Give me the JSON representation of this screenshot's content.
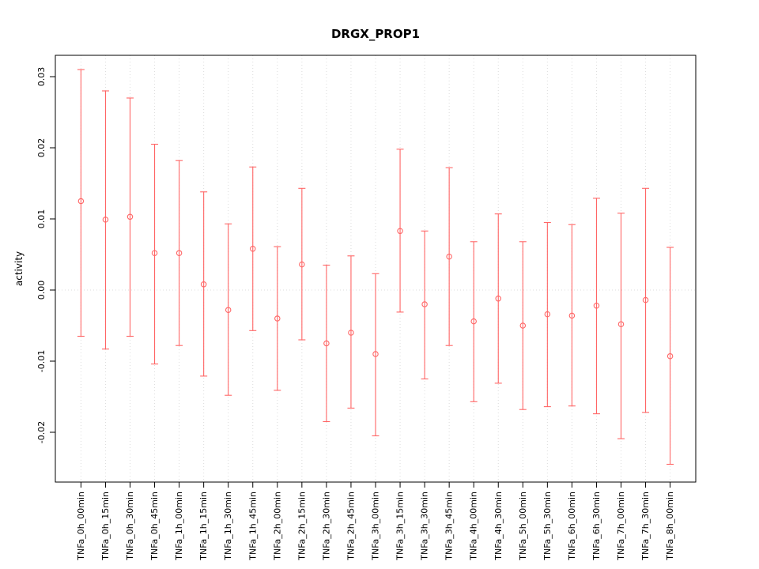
{
  "chart_data": {
    "type": "scatter",
    "error_bars": true,
    "title": "DRGX_PROP1",
    "xlabel": "",
    "ylabel": "activity",
    "ylim": [
      -0.027,
      0.033
    ],
    "yticks": [
      0.03,
      0.02,
      0.01,
      0.0,
      -0.01,
      -0.02
    ],
    "color": "#ff6666",
    "grid_color": "#dcdcdc",
    "categories": [
      "TNFa_0h_00min",
      "TNFa_0h_15min",
      "TNFa_0h_30min",
      "TNFa_0h_45min",
      "TNFa_1h_00min",
      "TNFa_1h_15min",
      "TNFa_1h_30min",
      "TNFa_1h_45min",
      "TNFa_2h_00min",
      "TNFa_2h_15min",
      "TNFa_2h_30min",
      "TNFa_2h_45min",
      "TNFa_3h_00min",
      "TNFa_3h_15min",
      "TNFa_3h_30min",
      "TNFa_3h_45min",
      "TNFa_4h_00min",
      "TNFa_4h_30min",
      "TNFa_5h_00min",
      "TNFa_5h_30min",
      "TNFa_6h_00min",
      "TNFa_6h_30min",
      "TNFa_7h_00min",
      "TNFa_7h_30min",
      "TNFa_8h_00min"
    ],
    "values": [
      0.0125,
      0.0099,
      0.0103,
      0.0052,
      0.0052,
      0.0008,
      -0.0028,
      0.0058,
      -0.004,
      0.0036,
      -0.0075,
      -0.006,
      -0.009,
      0.0083,
      -0.002,
      0.0047,
      -0.0044,
      -0.0012,
      -0.005,
      -0.0034,
      -0.0036,
      -0.0022,
      -0.0048,
      -0.0014,
      -0.0093
    ],
    "upper": [
      0.031,
      0.028,
      0.027,
      0.0205,
      0.0182,
      0.0138,
      0.0093,
      0.0173,
      0.0061,
      0.0143,
      0.0035,
      0.0048,
      0.0023,
      0.0198,
      0.0083,
      0.0172,
      0.0068,
      0.0107,
      0.0068,
      0.0095,
      0.0092,
      0.0129,
      0.0108,
      0.0143,
      0.006
    ],
    "lower": [
      -0.0065,
      -0.0083,
      -0.0065,
      -0.0104,
      -0.0078,
      -0.0121,
      -0.0148,
      -0.0057,
      -0.0141,
      -0.007,
      -0.0185,
      -0.0166,
      -0.0205,
      -0.0031,
      -0.0125,
      -0.0078,
      -0.0157,
      -0.0131,
      -0.0168,
      -0.0164,
      -0.0163,
      -0.0174,
      -0.0209,
      -0.0172,
      -0.0245
    ]
  }
}
